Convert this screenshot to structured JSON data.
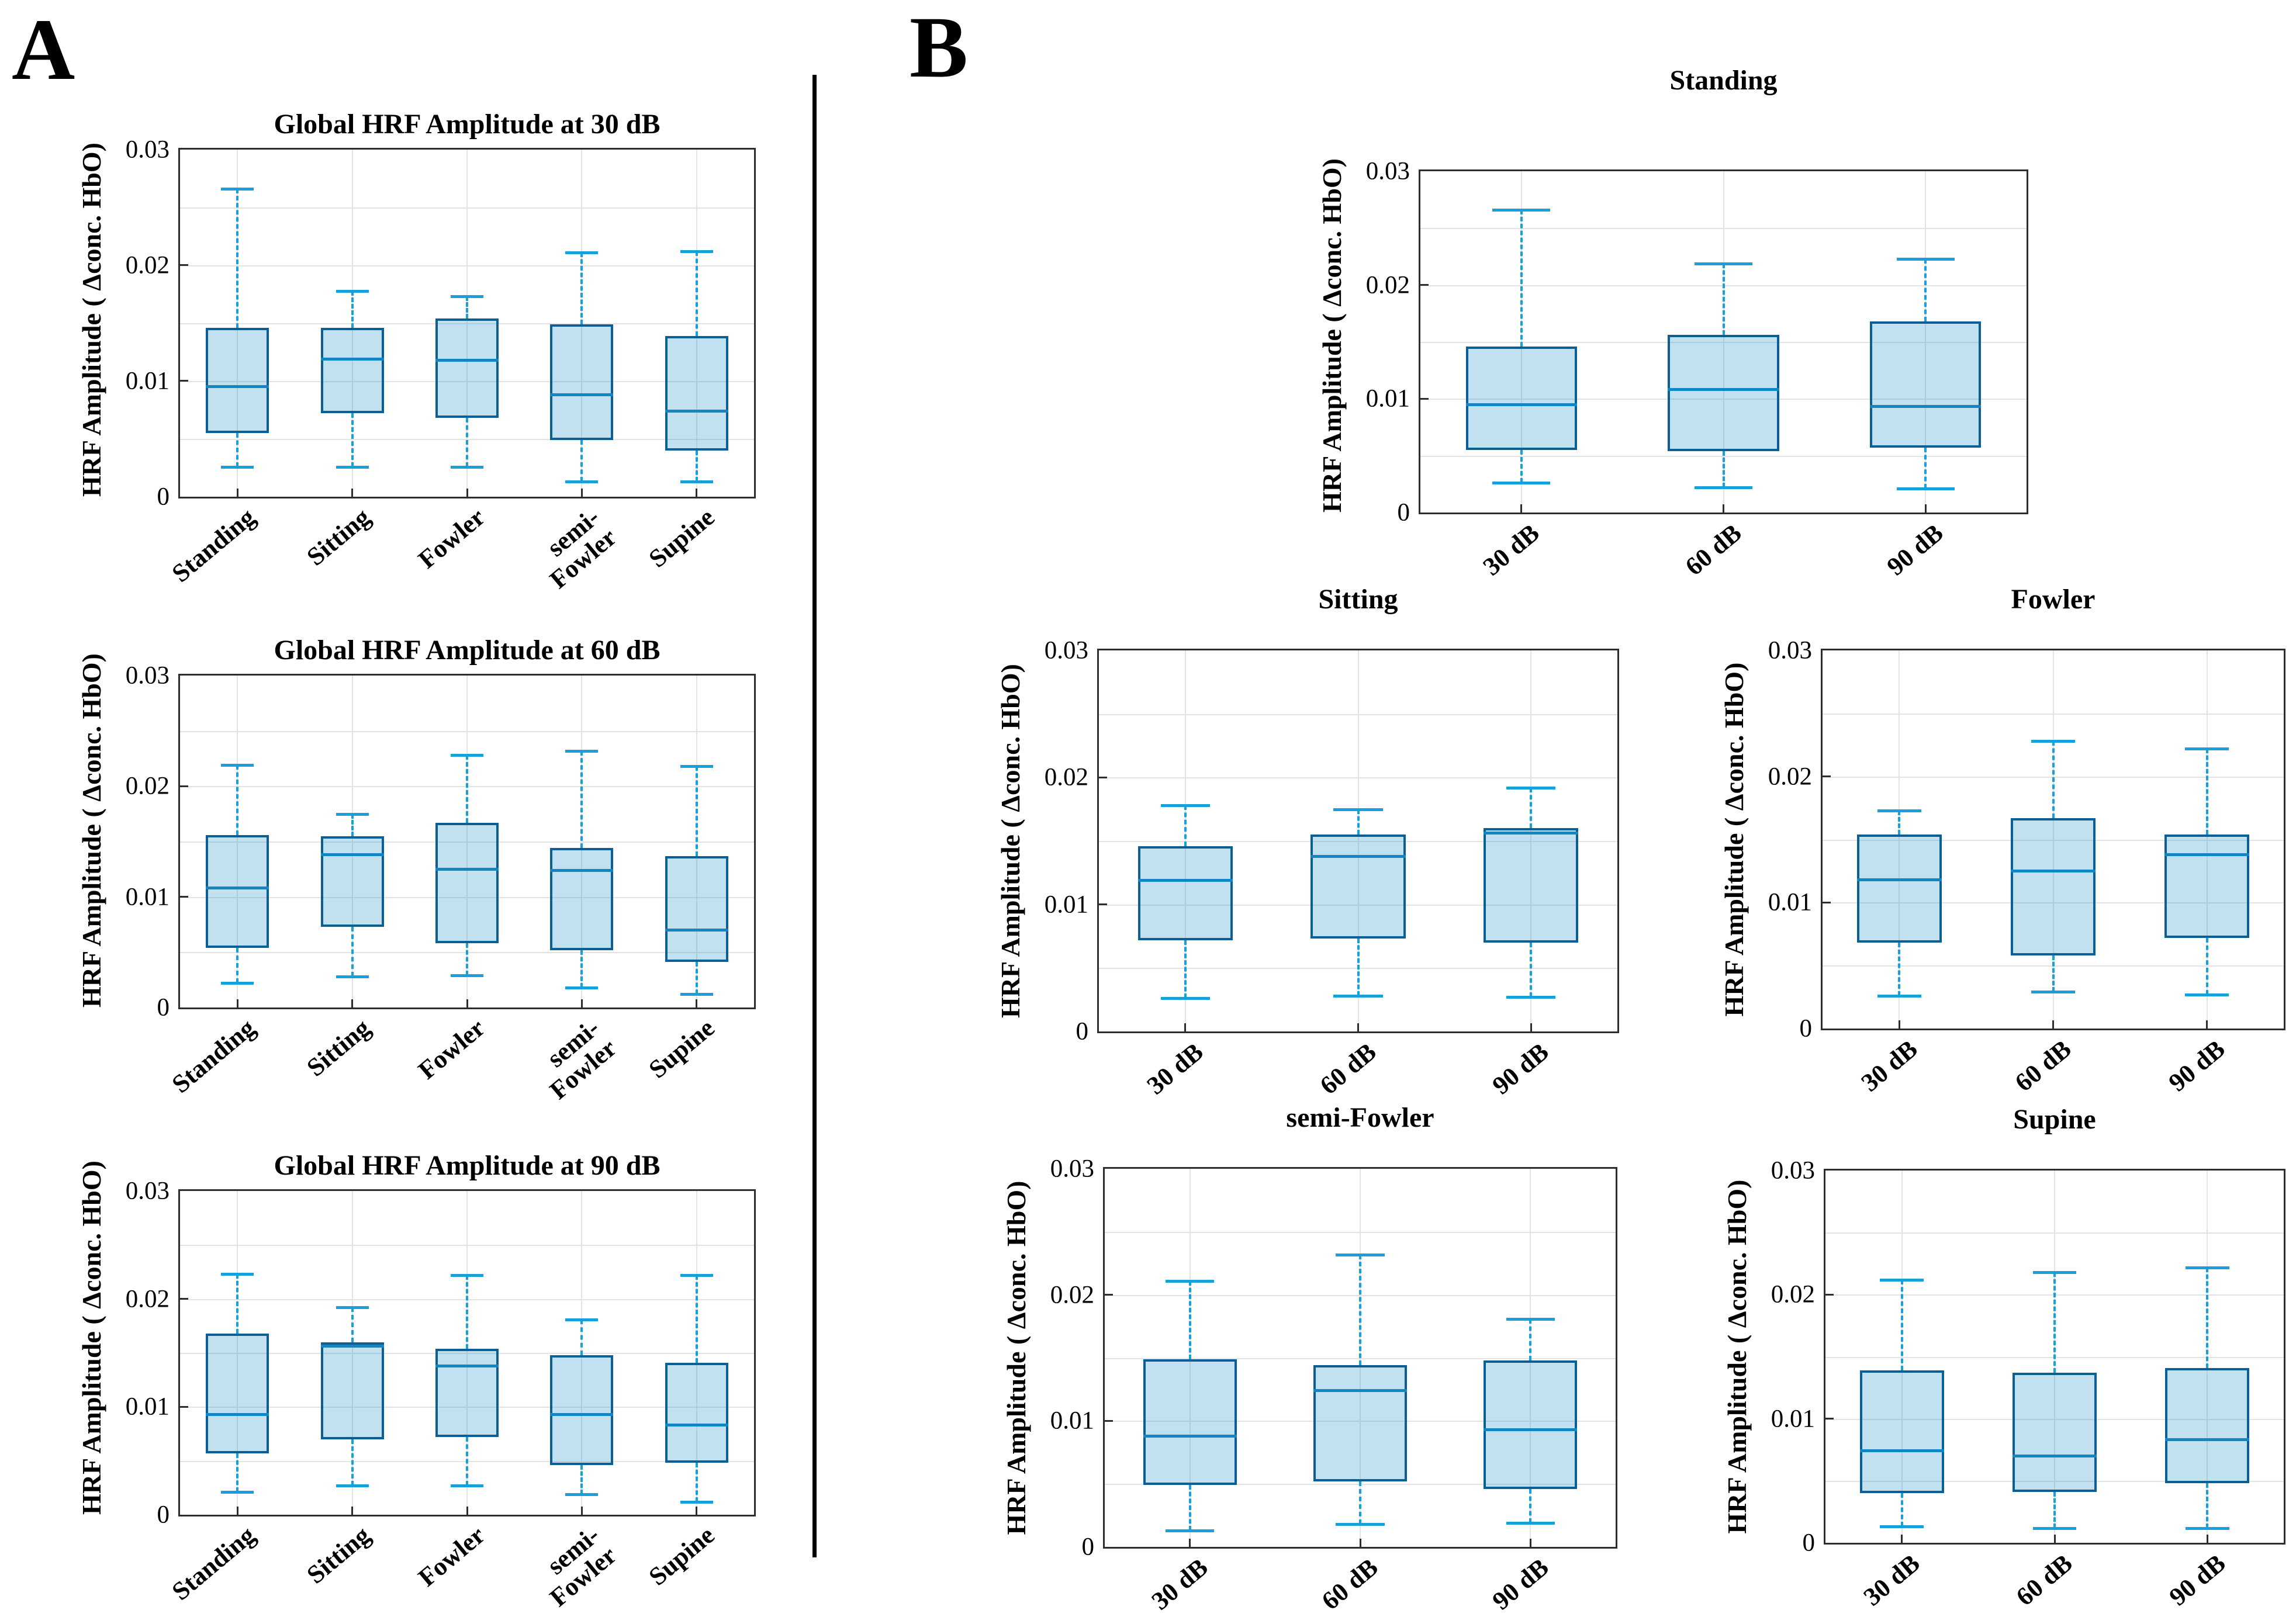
{
  "page": {
    "panel_a": "A",
    "panel_b": "B"
  },
  "colors": {
    "box_border": "#0b5f97",
    "box_fill_rgba": "rgba(31,142,201,0.28)",
    "median": "#1186c5",
    "whisker": "#18a0dc",
    "axis": "#2e2e2e",
    "grid": "#e3e3e3",
    "divider": "#000000"
  },
  "chart_data": [
    {
      "id": "a-30db",
      "type": "box",
      "title": "Global HRF Amplitude at 30 dB",
      "ylabel": "HRF Amplitude ( Δconc. HbO)",
      "ylim": [
        0,
        0.03
      ],
      "grid_step": 0.005,
      "ytick_values": [
        0,
        0.01,
        0.02,
        0.03
      ],
      "ytick_labels": [
        "0",
        "0.01",
        "0.02",
        "0.03"
      ],
      "categories": [
        "Standing",
        "Sitting",
        "Fowler",
        "semi-\nFowler",
        "Supine"
      ],
      "boxes": [
        {
          "category": "Standing",
          "low": 0.0026,
          "q1": 0.0055,
          "median": 0.0095,
          "q3": 0.0146,
          "high": 0.0266
        },
        {
          "category": "Sitting",
          "low": 0.0026,
          "q1": 0.0072,
          "median": 0.0119,
          "q3": 0.0146,
          "high": 0.0178
        },
        {
          "category": "Fowler",
          "low": 0.0026,
          "q1": 0.0068,
          "median": 0.0118,
          "q3": 0.0154,
          "high": 0.0173
        },
        {
          "category": "semi-\nFowler",
          "low": 0.0013,
          "q1": 0.0049,
          "median": 0.0088,
          "q3": 0.0149,
          "high": 0.0211
        },
        {
          "category": "Supine",
          "low": 0.0013,
          "q1": 0.004,
          "median": 0.0074,
          "q3": 0.0139,
          "high": 0.0212
        }
      ]
    },
    {
      "id": "a-60db",
      "type": "box",
      "title": "Global HRF Amplitude at 60 dB",
      "ylabel": "HRF Amplitude ( Δconc. HbO)",
      "ylim": [
        0,
        0.03
      ],
      "grid_step": 0.005,
      "ytick_values": [
        0,
        0.01,
        0.02,
        0.03
      ],
      "ytick_labels": [
        "0",
        "0.01",
        "0.02",
        "0.03"
      ],
      "categories": [
        "Standing",
        "Sitting",
        "Fowler",
        "semi-\nFowler",
        "Supine"
      ],
      "boxes": [
        {
          "category": "Standing",
          "low": 0.0022,
          "q1": 0.0054,
          "median": 0.0108,
          "q3": 0.0156,
          "high": 0.0219
        },
        {
          "category": "Sitting",
          "low": 0.0028,
          "q1": 0.0073,
          "median": 0.0138,
          "q3": 0.0155,
          "high": 0.0175
        },
        {
          "category": "Fowler",
          "low": 0.0029,
          "q1": 0.0058,
          "median": 0.0125,
          "q3": 0.0167,
          "high": 0.0228
        },
        {
          "category": "semi-\nFowler",
          "low": 0.0018,
          "q1": 0.0052,
          "median": 0.0124,
          "q3": 0.0144,
          "high": 0.0232
        },
        {
          "category": "Supine",
          "low": 0.0012,
          "q1": 0.0041,
          "median": 0.007,
          "q3": 0.0137,
          "high": 0.0218
        }
      ]
    },
    {
      "id": "a-90db",
      "type": "box",
      "title": "Global HRF Amplitude at 90 dB",
      "ylabel": "HRF Amplitude ( Δconc. HbO)",
      "ylim": [
        0,
        0.03
      ],
      "grid_step": 0.005,
      "ytick_values": [
        0,
        0.01,
        0.02,
        0.03
      ],
      "ytick_labels": [
        "0",
        "0.01",
        "0.02",
        "0.03"
      ],
      "categories": [
        "Standing",
        "Sitting",
        "Fowler",
        "semi-\nFowler",
        "Supine"
      ],
      "boxes": [
        {
          "category": "Standing",
          "low": 0.0021,
          "q1": 0.0057,
          "median": 0.0093,
          "q3": 0.0168,
          "high": 0.0223
        },
        {
          "category": "Sitting",
          "low": 0.0027,
          "q1": 0.007,
          "median": 0.0156,
          "q3": 0.016,
          "high": 0.0192
        },
        {
          "category": "Fowler",
          "low": 0.0027,
          "q1": 0.0072,
          "median": 0.0138,
          "q3": 0.0154,
          "high": 0.0222
        },
        {
          "category": "semi-\nFowler",
          "low": 0.0019,
          "q1": 0.0046,
          "median": 0.0093,
          "q3": 0.0148,
          "high": 0.0181
        },
        {
          "category": "Supine",
          "low": 0.0012,
          "q1": 0.0048,
          "median": 0.0083,
          "q3": 0.0141,
          "high": 0.0222
        }
      ]
    },
    {
      "id": "b-standing",
      "type": "box",
      "title": "Standing",
      "ylabel": "HRF Amplitude ( Δconc. HbO)",
      "ylim": [
        0,
        0.03
      ],
      "grid_step": 0.005,
      "ytick_values": [
        0,
        0.01,
        0.02,
        0.03
      ],
      "ytick_labels": [
        "0",
        "0.01",
        "0.02",
        "0.03"
      ],
      "categories": [
        "30 dB",
        "60 dB",
        "90 dB"
      ],
      "boxes": [
        {
          "category": "30 dB",
          "low": 0.0026,
          "q1": 0.0055,
          "median": 0.0095,
          "q3": 0.0146,
          "high": 0.0266
        },
        {
          "category": "60 dB",
          "low": 0.0022,
          "q1": 0.0054,
          "median": 0.0108,
          "q3": 0.0156,
          "high": 0.0219
        },
        {
          "category": "90 dB",
          "low": 0.0021,
          "q1": 0.0057,
          "median": 0.0093,
          "q3": 0.0168,
          "high": 0.0223
        }
      ]
    },
    {
      "id": "b-sitting",
      "type": "box",
      "title": "Sitting",
      "ylabel": "HRF Amplitude ( Δconc. HbO)",
      "ylim": [
        0,
        0.03
      ],
      "grid_step": 0.005,
      "ytick_values": [
        0,
        0.01,
        0.02,
        0.03
      ],
      "ytick_labels": [
        "0",
        "0.01",
        "0.02",
        "0.03"
      ],
      "categories": [
        "30 dB",
        "60 dB",
        "90 dB"
      ],
      "boxes": [
        {
          "category": "30 dB",
          "low": 0.0026,
          "q1": 0.0072,
          "median": 0.0119,
          "q3": 0.0146,
          "high": 0.0178
        },
        {
          "category": "60 dB",
          "low": 0.0028,
          "q1": 0.0073,
          "median": 0.0138,
          "q3": 0.0155,
          "high": 0.0175
        },
        {
          "category": "90 dB",
          "low": 0.0027,
          "q1": 0.007,
          "median": 0.0156,
          "q3": 0.016,
          "high": 0.0192
        }
      ]
    },
    {
      "id": "b-fowler",
      "type": "box",
      "title": "Fowler",
      "ylabel": "HRF Amplitude ( Δconc. HbO)",
      "ylim": [
        0,
        0.03
      ],
      "grid_step": 0.005,
      "ytick_values": [
        0,
        0.01,
        0.02,
        0.03
      ],
      "ytick_labels": [
        "0",
        "0.01",
        "0.02",
        "0.03"
      ],
      "categories": [
        "30 dB",
        "60 dB",
        "90 dB"
      ],
      "boxes": [
        {
          "category": "30 dB",
          "low": 0.0026,
          "q1": 0.0068,
          "median": 0.0118,
          "q3": 0.0154,
          "high": 0.0173
        },
        {
          "category": "60 dB",
          "low": 0.0029,
          "q1": 0.0058,
          "median": 0.0125,
          "q3": 0.0167,
          "high": 0.0228
        },
        {
          "category": "90 dB",
          "low": 0.0027,
          "q1": 0.0072,
          "median": 0.0138,
          "q3": 0.0154,
          "high": 0.0222
        }
      ]
    },
    {
      "id": "b-semifowler",
      "type": "box",
      "title": "semi-Fowler",
      "ylabel": "HRF Amplitude ( Δconc. HbO)",
      "ylim": [
        0,
        0.03
      ],
      "grid_step": 0.005,
      "ytick_values": [
        0,
        0.01,
        0.02,
        0.03
      ],
      "ytick_labels": [
        "0",
        "0.01",
        "0.02",
        "0.03"
      ],
      "categories": [
        "30 dB",
        "60 dB",
        "90 dB"
      ],
      "boxes": [
        {
          "category": "30 dB",
          "low": 0.0013,
          "q1": 0.0049,
          "median": 0.0088,
          "q3": 0.0149,
          "high": 0.0211
        },
        {
          "category": "60 dB",
          "low": 0.0018,
          "q1": 0.0052,
          "median": 0.0124,
          "q3": 0.0144,
          "high": 0.0232
        },
        {
          "category": "90 dB",
          "low": 0.0019,
          "q1": 0.0046,
          "median": 0.0093,
          "q3": 0.0148,
          "high": 0.0181
        }
      ]
    },
    {
      "id": "b-supine",
      "type": "box",
      "title": "Supine",
      "ylabel": "HRF Amplitude ( Δconc. HbO)",
      "ylim": [
        0,
        0.03
      ],
      "grid_step": 0.005,
      "ytick_values": [
        0,
        0.01,
        0.02,
        0.03
      ],
      "ytick_labels": [
        "0",
        "0.01",
        "0.02",
        "0.03"
      ],
      "categories": [
        "30 dB",
        "60 dB",
        "90 dB"
      ],
      "boxes": [
        {
          "category": "30 dB",
          "low": 0.0013,
          "q1": 0.004,
          "median": 0.0074,
          "q3": 0.0139,
          "high": 0.0212
        },
        {
          "category": "60 dB",
          "low": 0.0012,
          "q1": 0.0041,
          "median": 0.007,
          "q3": 0.0137,
          "high": 0.0218
        },
        {
          "category": "90 dB",
          "low": 0.0012,
          "q1": 0.0048,
          "median": 0.0083,
          "q3": 0.0141,
          "high": 0.0222
        }
      ]
    }
  ]
}
